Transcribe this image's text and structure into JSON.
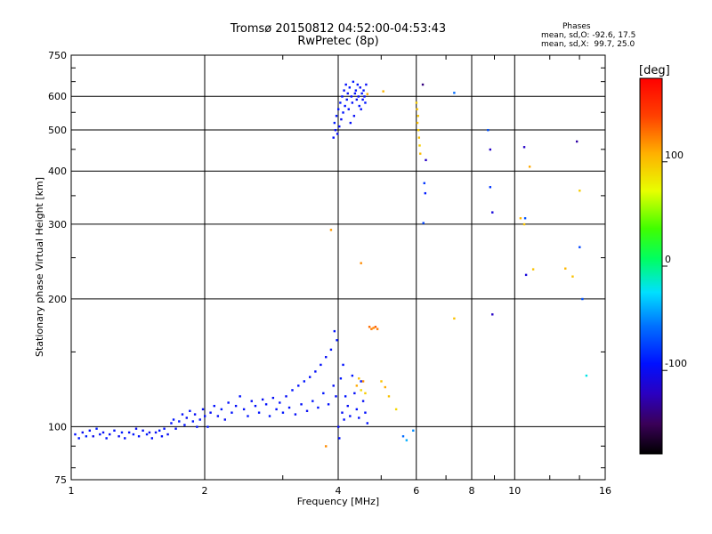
{
  "chart_data": {
    "type": "scatter",
    "title": "Tromsø 20150812 04:52:00-04:53:43",
    "subtitle": "RwPretec (8p)",
    "xlabel": "Frequency [MHz]",
    "ylabel": "Stationary phase Virtual Height [km]",
    "x_scale": "log",
    "y_scale": "log",
    "xlim": [
      1,
      16
    ],
    "ylim": [
      75,
      750
    ],
    "x_ticks": [
      1,
      2,
      4,
      6,
      8,
      10,
      16
    ],
    "x_tick_labels": [
      "1",
      "2",
      "4",
      "6",
      "8",
      "10",
      "16"
    ],
    "y_ticks": [
      75,
      100,
      200,
      300,
      400,
      500,
      600,
      750
    ],
    "y_tick_labels": [
      "75",
      "100",
      "200",
      "300",
      "400",
      "500",
      "600",
      "750"
    ],
    "grid": true,
    "colorbar": {
      "label": "[deg]",
      "range": [
        -180,
        180
      ],
      "ticks": [
        100,
        0,
        -100
      ],
      "tick_labels": [
        "100",
        "0",
        "-100"
      ]
    },
    "phase_legend": {
      "title": "Phases",
      "lines": [
        "mean, sd,O: -92.6, 17.5",
        "mean, sd,X:  99.7, 25.0"
      ]
    },
    "series": [
      {
        "points": [
          [
            1.02,
            96,
            -95
          ],
          [
            1.04,
            94,
            -92
          ],
          [
            1.06,
            97,
            -100
          ],
          [
            1.08,
            95,
            -88
          ],
          [
            1.1,
            98,
            -96
          ],
          [
            1.12,
            95,
            -104
          ],
          [
            1.14,
            99,
            -90
          ],
          [
            1.16,
            96,
            -95
          ],
          [
            1.18,
            97,
            -98
          ],
          [
            1.2,
            94,
            -92
          ],
          [
            1.22,
            96,
            -99
          ],
          [
            1.25,
            98,
            -94
          ],
          [
            1.28,
            95,
            -101
          ],
          [
            1.3,
            97,
            -90
          ],
          [
            1.32,
            94,
            -95
          ],
          [
            1.35,
            97,
            -97
          ],
          [
            1.38,
            96,
            -92
          ],
          [
            1.4,
            99,
            -100
          ],
          [
            1.42,
            95,
            -94
          ],
          [
            1.45,
            98,
            -96
          ],
          [
            1.48,
            96,
            -90
          ],
          [
            1.5,
            97,
            -103
          ],
          [
            1.52,
            94,
            -95
          ],
          [
            1.55,
            97,
            -99
          ],
          [
            1.58,
            98,
            -92
          ],
          [
            1.6,
            95,
            -96
          ],
          [
            1.62,
            99,
            -94
          ],
          [
            1.65,
            96,
            -100
          ],
          [
            1.68,
            102,
            -95
          ],
          [
            1.7,
            104,
            -92
          ],
          [
            1.72,
            99,
            -97
          ],
          [
            1.75,
            103,
            -90
          ],
          [
            1.78,
            107,
            -96
          ],
          [
            1.8,
            101,
            -94
          ],
          [
            1.82,
            105,
            -99
          ],
          [
            1.85,
            109,
            -95
          ],
          [
            1.88,
            103,
            -92
          ],
          [
            1.9,
            107,
            -98
          ],
          [
            1.92,
            100,
            -95
          ],
          [
            1.95,
            104,
            -93
          ],
          [
            1.98,
            110,
            -97
          ],
          [
            2.0,
            106,
            -95
          ],
          [
            2.03,
            100,
            -92
          ],
          [
            2.06,
            108,
            -98
          ],
          [
            2.1,
            112,
            -94
          ],
          [
            2.14,
            106,
            -96
          ],
          [
            2.18,
            110,
            -91
          ],
          [
            2.22,
            104,
            -99
          ],
          [
            2.26,
            114,
            -95
          ],
          [
            2.3,
            108,
            -93
          ],
          [
            2.35,
            112,
            -97
          ],
          [
            2.4,
            118,
            -94
          ],
          [
            2.45,
            110,
            -96
          ],
          [
            2.5,
            106,
            -92
          ],
          [
            2.55,
            115,
            -98
          ],
          [
            2.6,
            112,
            -95
          ],
          [
            2.65,
            108,
            -93
          ],
          [
            2.7,
            116,
            -99
          ],
          [
            2.75,
            113,
            -95
          ],
          [
            2.8,
            106,
            -92
          ],
          [
            2.85,
            117,
            -97
          ],
          [
            2.9,
            110,
            -94
          ],
          [
            2.95,
            114,
            -96
          ],
          [
            3.0,
            108,
            -92
          ],
          [
            3.05,
            118,
            -98
          ],
          [
            3.1,
            111,
            -95
          ],
          [
            3.15,
            122,
            -93
          ],
          [
            3.2,
            107,
            -97
          ],
          [
            3.25,
            125,
            -94
          ],
          [
            3.3,
            113,
            -96
          ],
          [
            3.35,
            128,
            -92
          ],
          [
            3.4,
            109,
            -99
          ],
          [
            3.45,
            131,
            -95
          ],
          [
            3.5,
            115,
            -93
          ],
          [
            3.55,
            135,
            -97
          ],
          [
            3.6,
            111,
            -94
          ],
          [
            3.65,
            140,
            -96
          ],
          [
            3.7,
            120,
            -92
          ],
          [
            3.75,
            146,
            -98
          ],
          [
            3.8,
            113,
            -95
          ],
          [
            3.85,
            152,
            -93
          ],
          [
            3.9,
            125,
            -97
          ],
          [
            3.92,
            168,
            -94
          ],
          [
            3.95,
            118,
            -96
          ],
          [
            3.97,
            160,
            -92
          ],
          [
            4.0,
            100,
            -98
          ],
          [
            4.02,
            94,
            -95
          ],
          [
            4.05,
            130,
            -93
          ],
          [
            4.08,
            108,
            -97
          ],
          [
            4.1,
            140,
            -94
          ],
          [
            4.12,
            104,
            -96
          ],
          [
            4.15,
            118,
            -92
          ],
          [
            4.2,
            112,
            -98
          ],
          [
            4.25,
            106,
            -95
          ],
          [
            4.3,
            132,
            -93
          ],
          [
            4.35,
            120,
            -97
          ],
          [
            4.4,
            110,
            -94
          ],
          [
            4.45,
            105,
            -96
          ],
          [
            4.5,
            128,
            -92
          ],
          [
            4.55,
            115,
            -98
          ],
          [
            4.6,
            108,
            -95
          ],
          [
            4.65,
            102,
            -93
          ],
          [
            3.9,
            480,
            -95
          ],
          [
            3.92,
            520,
            -90
          ],
          [
            3.94,
            500,
            -98
          ],
          [
            3.96,
            540,
            -92
          ],
          [
            3.98,
            490,
            -100
          ],
          [
            4.0,
            560,
            -94
          ],
          [
            4.02,
            510,
            -96
          ],
          [
            4.04,
            580,
            -91
          ],
          [
            4.06,
            530,
            -99
          ],
          [
            4.08,
            600,
            -95
          ],
          [
            4.1,
            550,
            -93
          ],
          [
            4.12,
            620,
            -97
          ],
          [
            4.14,
            570,
            -94
          ],
          [
            4.16,
            640,
            -96
          ],
          [
            4.18,
            590,
            -92
          ],
          [
            4.2,
            610,
            -98
          ],
          [
            4.22,
            560,
            -95
          ],
          [
            4.24,
            630,
            -93
          ],
          [
            4.26,
            520,
            -97
          ],
          [
            4.28,
            600,
            -94
          ],
          [
            4.3,
            580,
            -96
          ],
          [
            4.32,
            650,
            -92
          ],
          [
            4.34,
            540,
            -98
          ],
          [
            4.36,
            610,
            -95
          ],
          [
            4.38,
            620,
            -93
          ],
          [
            4.4,
            590,
            -97
          ],
          [
            4.42,
            640,
            -94
          ],
          [
            4.44,
            600,
            -96
          ],
          [
            4.46,
            570,
            -92
          ],
          [
            4.48,
            630,
            -98
          ],
          [
            4.5,
            560,
            -95
          ],
          [
            4.52,
            610,
            -93
          ],
          [
            4.54,
            590,
            -97
          ],
          [
            4.56,
            620,
            -94
          ],
          [
            4.58,
            600,
            -96
          ],
          [
            4.6,
            580,
            -92
          ],
          [
            4.62,
            640,
            -98
          ],
          [
            6.2,
            640,
            -140
          ],
          [
            6.3,
            425,
            -120
          ],
          [
            6.25,
            375,
            -80
          ],
          [
            6.28,
            355,
            -90
          ],
          [
            6.22,
            302,
            -75
          ],
          [
            7.3,
            612,
            -60
          ],
          [
            8.7,
            500,
            -70
          ],
          [
            8.8,
            450,
            -120
          ],
          [
            8.8,
            367,
            -80
          ],
          [
            8.9,
            320,
            -110
          ],
          [
            8.9,
            184,
            -120
          ],
          [
            10.5,
            456,
            -120
          ],
          [
            10.6,
            228,
            -110
          ],
          [
            10.55,
            310,
            -70
          ],
          [
            13.8,
            470,
            -130
          ],
          [
            14.0,
            265,
            -75
          ],
          [
            14.2,
            200,
            -70
          ],
          [
            14.5,
            132,
            -20
          ],
          [
            5.6,
            95,
            -60
          ],
          [
            5.7,
            93,
            -40
          ],
          [
            5.9,
            98,
            -50
          ]
        ]
      },
      {
        "points": [
          [
            4.4,
            125,
            110
          ],
          [
            4.45,
            130,
            100
          ],
          [
            4.5,
            122,
            90
          ],
          [
            4.55,
            128,
            120
          ],
          [
            4.6,
            120,
            95
          ],
          [
            4.7,
            172,
            130
          ],
          [
            4.75,
            170,
            125
          ],
          [
            4.8,
            171,
            120
          ],
          [
            4.85,
            172,
            135
          ],
          [
            4.9,
            170,
            125
          ],
          [
            5.0,
            128,
            100
          ],
          [
            5.1,
            124,
            110
          ],
          [
            5.2,
            118,
            100
          ],
          [
            5.4,
            110,
            90
          ],
          [
            4.5,
            243,
            120
          ],
          [
            3.85,
            291,
            115
          ],
          [
            4.65,
            608,
            110
          ],
          [
            5.05,
            617,
            105
          ],
          [
            6.0,
            580,
            95
          ],
          [
            6.02,
            560,
            100
          ],
          [
            6.05,
            540,
            98
          ],
          [
            6.03,
            520,
            102
          ],
          [
            6.06,
            500,
            96
          ],
          [
            6.08,
            480,
            100
          ],
          [
            6.1,
            460,
            95
          ],
          [
            6.12,
            440,
            102
          ],
          [
            7.3,
            180,
            100
          ],
          [
            10.3,
            310,
            105
          ],
          [
            10.5,
            300,
            98
          ],
          [
            10.8,
            410,
            110
          ],
          [
            11.0,
            235,
            100
          ],
          [
            13.0,
            236,
            105
          ],
          [
            13.5,
            226,
            100
          ],
          [
            14.0,
            360,
            95
          ],
          [
            3.75,
            90,
            120
          ]
        ]
      }
    ]
  }
}
